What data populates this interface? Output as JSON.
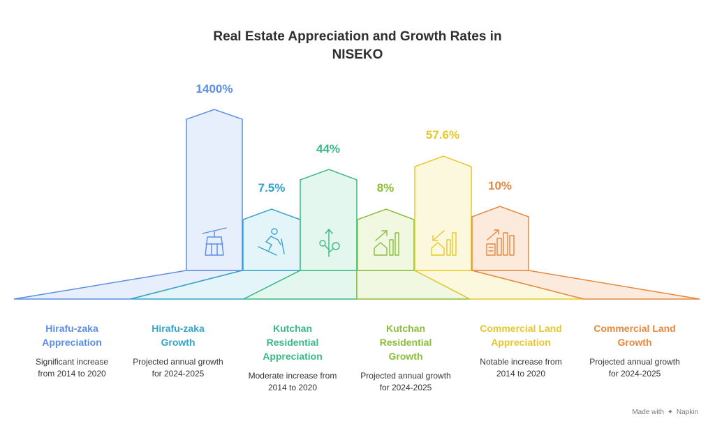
{
  "title": {
    "line1": "Real Estate Appreciation and Growth Rates in",
    "line2": "NISEKO"
  },
  "items": [
    {
      "value": "1400%",
      "title1": "Hirafu-zaka",
      "title2": "Appreciation",
      "title3": "",
      "desc1": "Significant increase",
      "desc2": "from 2014 to 2020",
      "icon": "gondola-icon",
      "color": "#5b8de3",
      "fill": "#e8effc"
    },
    {
      "value": "7.5%",
      "title1": "Hirafu-zaka",
      "title2": "Growth",
      "title3": "",
      "desc1": "Projected annual growth",
      "desc2": "for 2024-2025",
      "icon": "skier-icon",
      "color": "#35a3c7",
      "fill": "#e4f5fa"
    },
    {
      "value": "44%",
      "title1": "Kutchan",
      "title2": "Residential",
      "title3": "Appreciation",
      "desc1": "Moderate increase from",
      "desc2": "2014 to 2020",
      "icon": "plant-growth-icon",
      "color": "#3ab984",
      "fill": "#e4f7ee"
    },
    {
      "value": "8%",
      "title1": "Kutchan",
      "title2": "Residential",
      "title3": "Growth",
      "desc1": "Projected annual growth",
      "desc2": "for 2024-2025",
      "icon": "house-chart-up-icon",
      "color": "#8bbd3c",
      "fill": "#f0f8e2"
    },
    {
      "value": "57.6%",
      "title1": "Commercial Land",
      "title2": "Appreciation",
      "title3": "",
      "desc1": "Notable increase from",
      "desc2": "2014 to 2020",
      "icon": "house-chart-down-icon",
      "color": "#e6c72b",
      "fill": "#fcf8dd"
    },
    {
      "value": "10%",
      "title1": "Commercial Land",
      "title2": "Growth",
      "title3": "",
      "desc1": "Projected annual growth",
      "desc2": "for 2024-2025",
      "icon": "buildings-chart-icon",
      "color": "#e4883e",
      "fill": "#fcebdc"
    }
  ],
  "footer": {
    "made_with": "Made with",
    "brand": "Napkin"
  }
}
